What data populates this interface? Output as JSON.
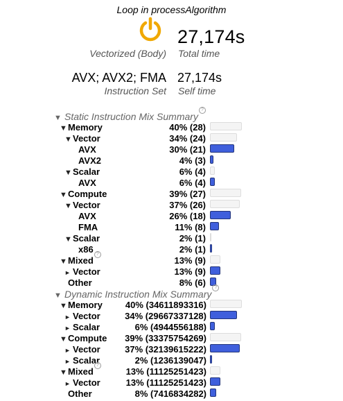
{
  "title": "Loop in processAlgorithm",
  "total_time": {
    "value": "27,174s",
    "caption": "Total time",
    "mode": "Vectorized (Body)"
  },
  "self_time": {
    "value": "27,174s",
    "caption": "Self time",
    "instruction_set": "AVX; AVX2; FMA",
    "instruction_set_caption": "Instruction Set"
  },
  "static_mix": {
    "title": "Static Instruction Mix Summary",
    "rows": [
      {
        "label": "Memory",
        "value": "40% (28)",
        "pct": 40
      },
      {
        "label": "Vector",
        "value": "34% (24)",
        "pct": 34
      },
      {
        "label": "AVX",
        "value": "30% (21)",
        "pct": 30
      },
      {
        "label": "AVX2",
        "value": "4% (3)",
        "pct": 4
      },
      {
        "label": "Scalar",
        "value": "6% (4)",
        "pct": 6
      },
      {
        "label": "AVX",
        "value": "6% (4)",
        "pct": 6
      },
      {
        "label": "Compute",
        "value": "39% (27)",
        "pct": 39
      },
      {
        "label": "Vector",
        "value": "37% (26)",
        "pct": 37
      },
      {
        "label": "AVX",
        "value": "26% (18)",
        "pct": 26
      },
      {
        "label": "FMA",
        "value": "11% (8)",
        "pct": 11
      },
      {
        "label": "Scalar",
        "value": "2% (1)",
        "pct": 2
      },
      {
        "label": "x86",
        "value": "2% (1)",
        "pct": 2
      },
      {
        "label": "Mixed",
        "value": "13% (9)",
        "pct": 13
      },
      {
        "label": "Vector",
        "value": "13% (9)",
        "pct": 13
      },
      {
        "label": "Other",
        "value": "8% (6)",
        "pct": 8
      }
    ]
  },
  "dynamic_mix": {
    "title": "Dynamic Instruction Mix Summary",
    "rows": [
      {
        "label": "Memory",
        "value": "40% (34611893316)",
        "pct": 40
      },
      {
        "label": "Vector",
        "value": "34% (29667337128)",
        "pct": 34
      },
      {
        "label": "Scalar",
        "value": "6% (4944556188)",
        "pct": 6
      },
      {
        "label": "Compute",
        "value": "39% (33375754269)",
        "pct": 39
      },
      {
        "label": "Vector",
        "value": "37% (32139615222)",
        "pct": 37
      },
      {
        "label": "Scalar",
        "value": "2% (1236139047)",
        "pct": 2
      },
      {
        "label": "Mixed",
        "value": "13% (11125251423)",
        "pct": 13
      },
      {
        "label": "Vector",
        "value": "13% (11125251423)",
        "pct": 13
      },
      {
        "label": "Other",
        "value": "8% (7416834282)",
        "pct": 8
      }
    ]
  }
}
